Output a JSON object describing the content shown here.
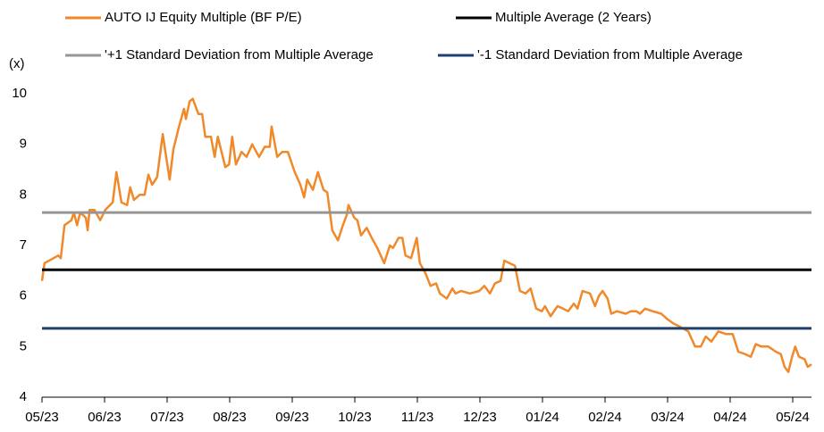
{
  "chart_data": {
    "type": "line",
    "y_axis_label": "(x)",
    "xlim": [
      0,
      12.3
    ],
    "xticks": [
      {
        "value": 0,
        "label": "05/23"
      },
      {
        "value": 1,
        "label": "06/23"
      },
      {
        "value": 2,
        "label": "07/23"
      },
      {
        "value": 3,
        "label": "08/23"
      },
      {
        "value": 4,
        "label": "09/23"
      },
      {
        "value": 5,
        "label": "10/23"
      },
      {
        "value": 6,
        "label": "11/23"
      },
      {
        "value": 7,
        "label": "12/23"
      },
      {
        "value": 8,
        "label": "01/24"
      },
      {
        "value": 9,
        "label": "02/24"
      },
      {
        "value": 10,
        "label": "03/24"
      },
      {
        "value": 11,
        "label": "04/24"
      },
      {
        "value": 12,
        "label": "05/24"
      }
    ],
    "ylim": [
      4,
      10
    ],
    "yticks": [
      4,
      5,
      6,
      7,
      8,
      9,
      10
    ],
    "series": [
      {
        "name": "AUTO IJ Equity Multiple (BF P/E)",
        "color": "#f0892a",
        "x": [
          0,
          0.04,
          0.26,
          0.3,
          0.36,
          0.47,
          0.51,
          0.56,
          0.61,
          0.7,
          0.73,
          0.76,
          0.84,
          0.93,
          1.01,
          1.13,
          1.19,
          1.27,
          1.36,
          1.41,
          1.47,
          1.56,
          1.64,
          1.7,
          1.76,
          1.84,
          1.93,
          2.04,
          2.1,
          2.19,
          2.27,
          2.3,
          2.36,
          2.41,
          2.5,
          2.56,
          2.61,
          2.7,
          2.76,
          2.81,
          2.87,
          2.93,
          2.99,
          3.04,
          3.1,
          3.19,
          3.27,
          3.36,
          3.47,
          3.56,
          3.64,
          3.67,
          3.76,
          3.84,
          3.93,
          4.04,
          4.13,
          4.19,
          4.24,
          4.33,
          4.41,
          4.5,
          4.56,
          4.64,
          4.73,
          4.81,
          4.87,
          4.9,
          4.99,
          5.04,
          5.1,
          5.19,
          5.27,
          5.36,
          5.47,
          5.56,
          5.61,
          5.7,
          5.76,
          5.81,
          5.9,
          5.99,
          6.04,
          6.13,
          6.21,
          6.3,
          6.36,
          6.47,
          6.56,
          6.61,
          6.7,
          6.84,
          6.99,
          7.07,
          7.16,
          7.24,
          7.33,
          7.39,
          7.47,
          7.56,
          7.64,
          7.73,
          7.81,
          7.9,
          7.99,
          8.04,
          8.13,
          8.24,
          8.33,
          8.41,
          8.5,
          8.56,
          8.64,
          8.76,
          8.84,
          8.9,
          8.96,
          9.04,
          9.1,
          9.19,
          9.33,
          9.41,
          9.5,
          9.56,
          9.64,
          9.76,
          9.9,
          9.99,
          10.1,
          10.19,
          10.33,
          10.44,
          10.53,
          10.61,
          10.7,
          10.81,
          10.93,
          11.04,
          11.13,
          11.24,
          11.33,
          11.41,
          11.5,
          11.61,
          11.73,
          11.81,
          11.87,
          11.93,
          11.99,
          12.04,
          12.1,
          12.19,
          12.24,
          12.3
        ],
        "values": [
          6.3,
          6.65,
          6.8,
          6.75,
          7.4,
          7.5,
          7.65,
          7.4,
          7.65,
          7.55,
          7.3,
          7.7,
          7.7,
          7.5,
          7.7,
          7.85,
          8.45,
          7.85,
          7.8,
          8.15,
          7.9,
          8.0,
          8.0,
          8.4,
          8.2,
          8.35,
          9.2,
          8.3,
          8.9,
          9.35,
          9.7,
          9.5,
          9.85,
          9.9,
          9.6,
          9.6,
          9.15,
          9.15,
          8.75,
          9.15,
          8.85,
          8.55,
          8.6,
          9.15,
          8.6,
          8.85,
          8.75,
          9.0,
          8.75,
          8.95,
          8.95,
          9.35,
          8.75,
          8.85,
          8.85,
          8.45,
          8.2,
          7.95,
          8.3,
          8.1,
          8.45,
          8.1,
          8.05,
          7.3,
          7.1,
          7.4,
          7.6,
          7.8,
          7.55,
          7.5,
          7.2,
          7.35,
          7.15,
          6.95,
          6.65,
          7.0,
          6.95,
          7.15,
          7.15,
          6.8,
          6.75,
          7.15,
          6.65,
          6.45,
          6.2,
          6.25,
          6.05,
          5.95,
          6.15,
          6.05,
          6.1,
          6.05,
          6.1,
          6.2,
          6.05,
          6.25,
          6.3,
          6.7,
          6.65,
          6.6,
          6.1,
          6.05,
          6.15,
          5.75,
          5.7,
          5.8,
          5.6,
          5.8,
          5.75,
          5.7,
          5.85,
          5.75,
          6.1,
          6.05,
          5.8,
          6.0,
          6.1,
          5.95,
          5.65,
          5.7,
          5.65,
          5.7,
          5.7,
          5.65,
          5.75,
          5.7,
          5.65,
          5.55,
          5.45,
          5.4,
          5.3,
          5.0,
          5.0,
          5.2,
          5.1,
          5.3,
          5.25,
          5.25,
          4.9,
          4.85,
          4.8,
          5.05,
          5.0,
          5.0,
          4.9,
          4.85,
          4.6,
          4.5,
          4.8,
          5.0,
          4.8,
          4.75,
          4.6,
          4.65
        ]
      },
      {
        "name": "Multiple Average (2 Years)",
        "color": "#000000",
        "value": 6.52
      },
      {
        "name": "'+1 Standard Deviation from Multiple Average",
        "color": "#969696",
        "value": 7.65
      },
      {
        "name": "'-1 Standard Deviation from Multiple Average",
        "color": "#1f3f6e",
        "value": 5.36
      }
    ]
  }
}
